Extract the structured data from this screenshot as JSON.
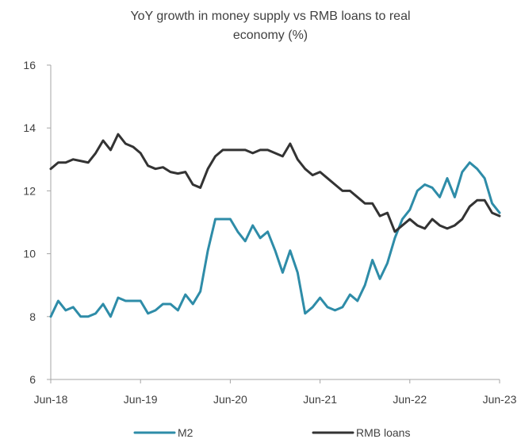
{
  "chart_data": {
    "type": "line",
    "title_lines": [
      "YoY growth in money supply vs RMB loans to real",
      "economy (%)"
    ],
    "ylim": [
      6,
      16
    ],
    "y_ticks": [
      "6",
      "8",
      "10",
      "12",
      "14",
      "16"
    ],
    "x_range": [
      "2018-06",
      "2023-06"
    ],
    "x_ticks": [
      {
        "date": "2018-06",
        "label": "Jun-18"
      },
      {
        "date": "2019-06",
        "label": "Jun-19"
      },
      {
        "date": "2020-06",
        "label": "Jun-20"
      },
      {
        "date": "2021-06",
        "label": "Jun-21"
      },
      {
        "date": "2022-06",
        "label": "Jun-22"
      },
      {
        "date": "2023-06",
        "label": "Jun-23"
      }
    ],
    "legend_position": "bottom",
    "grid": false,
    "series": [
      {
        "name": "M2",
        "color": "#2E8CA8",
        "x": [
          "2018-06",
          "2018-07",
          "2018-08",
          "2018-09",
          "2018-10",
          "2018-11",
          "2018-12",
          "2019-01",
          "2019-02",
          "2019-03",
          "2019-04",
          "2019-05",
          "2019-06",
          "2019-07",
          "2019-08",
          "2019-09",
          "2019-10",
          "2019-11",
          "2019-12",
          "2020-01",
          "2020-02",
          "2020-03",
          "2020-04",
          "2020-05",
          "2020-06",
          "2020-07",
          "2020-08",
          "2020-09",
          "2020-10",
          "2020-11",
          "2020-12",
          "2021-01",
          "2021-02",
          "2021-03",
          "2021-04",
          "2021-05",
          "2021-06",
          "2021-07",
          "2021-08",
          "2021-09",
          "2021-10",
          "2021-11",
          "2021-12",
          "2022-01",
          "2022-02",
          "2022-03",
          "2022-04",
          "2022-05",
          "2022-06",
          "2022-07",
          "2022-08",
          "2022-09",
          "2022-10",
          "2022-11",
          "2022-12",
          "2023-01",
          "2023-02",
          "2023-03",
          "2023-04",
          "2023-05",
          "2023-06"
        ],
        "values": [
          8.0,
          8.5,
          8.2,
          8.3,
          8.0,
          8.0,
          8.1,
          8.4,
          8.0,
          8.6,
          8.5,
          8.5,
          8.5,
          8.1,
          8.2,
          8.4,
          8.4,
          8.2,
          8.7,
          8.4,
          8.8,
          10.1,
          11.1,
          11.1,
          11.1,
          10.7,
          10.4,
          10.9,
          10.5,
          10.7,
          10.1,
          9.4,
          10.1,
          9.4,
          8.1,
          8.3,
          8.6,
          8.3,
          8.2,
          8.3,
          8.7,
          8.5,
          9.0,
          9.8,
          9.2,
          9.7,
          10.5,
          11.1,
          11.4,
          12.0,
          12.2,
          12.1,
          11.8,
          12.4,
          11.8,
          12.6,
          12.9,
          12.7,
          12.4,
          11.6,
          11.3
        ]
      },
      {
        "name": "RMB loans",
        "color": "#333333",
        "x": [
          "2018-06",
          "2018-07",
          "2018-08",
          "2018-09",
          "2018-10",
          "2018-11",
          "2018-12",
          "2019-01",
          "2019-02",
          "2019-03",
          "2019-04",
          "2019-05",
          "2019-06",
          "2019-07",
          "2019-08",
          "2019-09",
          "2019-10",
          "2019-11",
          "2019-12",
          "2020-01",
          "2020-02",
          "2020-03",
          "2020-04",
          "2020-05",
          "2020-06",
          "2020-07",
          "2020-08",
          "2020-09",
          "2020-10",
          "2020-11",
          "2020-12",
          "2021-01",
          "2021-02",
          "2021-03",
          "2021-04",
          "2021-05",
          "2021-06",
          "2021-07",
          "2021-08",
          "2021-09",
          "2021-10",
          "2021-11",
          "2021-12",
          "2022-01",
          "2022-02",
          "2022-03",
          "2022-04",
          "2022-05",
          "2022-06",
          "2022-07",
          "2022-08",
          "2022-09",
          "2022-10",
          "2022-11",
          "2022-12",
          "2023-01",
          "2023-02",
          "2023-03",
          "2023-04",
          "2023-05",
          "2023-06"
        ],
        "values": [
          12.7,
          12.9,
          12.9,
          13.0,
          12.95,
          12.9,
          13.2,
          13.6,
          13.3,
          13.8,
          13.5,
          13.4,
          13.2,
          12.8,
          12.7,
          12.75,
          12.6,
          12.55,
          12.6,
          12.2,
          12.1,
          12.7,
          13.1,
          13.3,
          13.3,
          13.3,
          13.3,
          13.2,
          13.3,
          13.3,
          13.2,
          13.1,
          13.5,
          13.0,
          12.7,
          12.5,
          12.6,
          12.4,
          12.2,
          12.0,
          12.0,
          11.8,
          11.6,
          11.6,
          11.2,
          11.3,
          10.7,
          10.9,
          11.1,
          10.9,
          10.8,
          11.1,
          10.9,
          10.8,
          10.9,
          11.1,
          11.5,
          11.7,
          11.7,
          11.3,
          11.2
        ]
      }
    ]
  }
}
